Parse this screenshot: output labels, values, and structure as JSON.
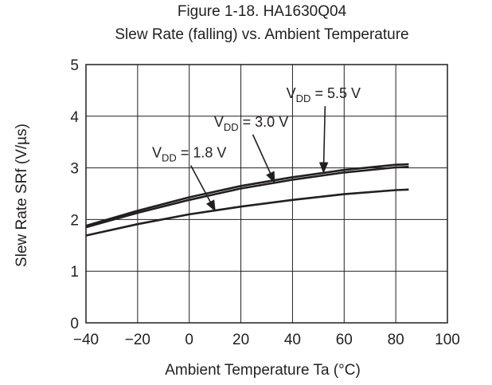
{
  "chart_data": {
    "type": "line",
    "title_line1": "Figure 1-18. HA1630Q04",
    "title_line2": "Slew Rate (falling) vs. Ambient Temperature",
    "xlabel": "Ambient Temperature  Ta  (°C)",
    "ylabel": "Slew Rate SRf (V/µs)",
    "xlim": [
      -40,
      100
    ],
    "ylim": [
      0,
      5
    ],
    "x_ticks": [
      "−40",
      "−20",
      "0",
      "20",
      "40",
      "60",
      "80",
      "100"
    ],
    "y_ticks": [
      "0",
      "1",
      "2",
      "3",
      "4",
      "5"
    ],
    "grid": true,
    "series": [
      {
        "name": "VDD = 5.5 V",
        "sub": "DD",
        "prefix": "V",
        "suffix": " = 5.5 V",
        "x": [
          -40,
          -20,
          0,
          20,
          40,
          60,
          80,
          85
        ],
        "y": [
          1.88,
          2.17,
          2.43,
          2.65,
          2.82,
          2.96,
          3.06,
          3.07
        ]
      },
      {
        "name": "VDD = 3.0 V",
        "sub": "DD",
        "prefix": "V",
        "suffix": " = 3.0 V",
        "x": [
          -40,
          -20,
          0,
          20,
          40,
          60,
          80,
          85
        ],
        "y": [
          1.85,
          2.13,
          2.38,
          2.6,
          2.77,
          2.91,
          3.01,
          3.02
        ]
      },
      {
        "name": "VDD = 1.8 V",
        "sub": "DD",
        "prefix": "V",
        "suffix": " = 1.8 V",
        "x": [
          -40,
          -20,
          0,
          20,
          40,
          60,
          80,
          85
        ],
        "y": [
          1.69,
          1.91,
          2.1,
          2.25,
          2.38,
          2.49,
          2.57,
          2.58
        ]
      }
    ],
    "annotations": [
      {
        "series": 0,
        "text_x": 52,
        "text_y": 4.35,
        "arrow_to_x": 52,
        "arrow_to_y": 2.91
      },
      {
        "series": 1,
        "text_x": 24,
        "text_y": 3.8,
        "arrow_to_x": 33,
        "arrow_to_y": 2.72
      },
      {
        "series": 2,
        "text_x": 0,
        "text_y": 3.2,
        "arrow_to_x": 10,
        "arrow_to_y": 2.17
      }
    ]
  }
}
